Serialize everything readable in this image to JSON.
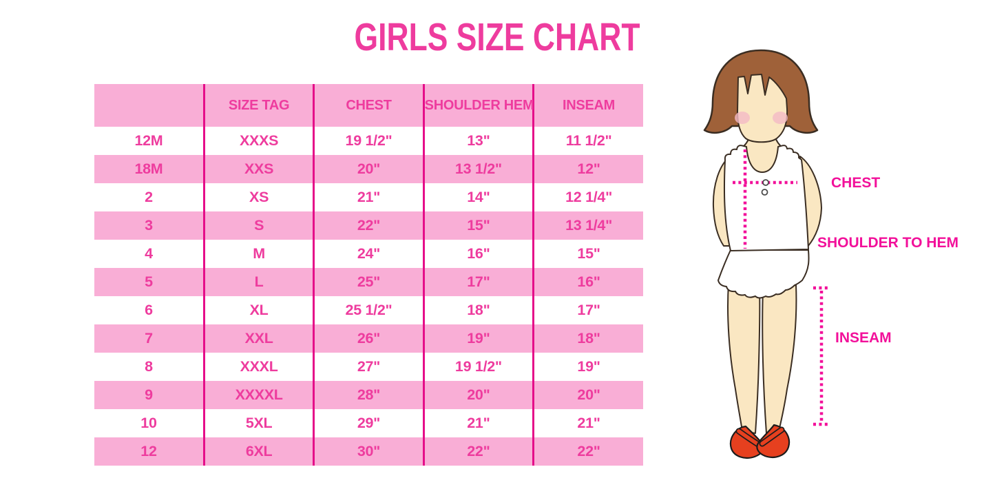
{
  "title": "GIRLS SIZE CHART",
  "colors": {
    "title_pink": "#EE3C9E",
    "stripe_pink": "#F9AED6",
    "grid_pink": "#E50D89",
    "text_pink": "#EE3C9E",
    "label_pink": "#F2109A",
    "hair_brown": "#9F6139",
    "skin": "#FAE7C2",
    "blush": "#F4BAC5",
    "shoe_red": "#E6401F",
    "outline": "#3A2D22"
  },
  "chart_data": {
    "type": "table",
    "title": "GIRLS SIZE CHART",
    "columns": [
      "",
      "SIZE TAG",
      "CHEST",
      "SHOULDER HEM",
      "INSEAM"
    ],
    "rows": [
      [
        "12M",
        "XXXS",
        "19 1/2\"",
        "13\"",
        "11 1/2\""
      ],
      [
        "18M",
        "XXS",
        "20\"",
        "13 1/2\"",
        "12\""
      ],
      [
        "2",
        "XS",
        "21\"",
        "14\"",
        "12 1/4\""
      ],
      [
        "3",
        "S",
        "22\"",
        "15\"",
        "13 1/4\""
      ],
      [
        "4",
        "M",
        "24\"",
        "16\"",
        "15\""
      ],
      [
        "5",
        "L",
        "25\"",
        "17\"",
        "16\""
      ],
      [
        "6",
        "XL",
        "25 1/2\"",
        "18\"",
        "17\""
      ],
      [
        "7",
        "XXL",
        "26\"",
        "19\"",
        "18\""
      ],
      [
        "8",
        "XXXL",
        "27\"",
        "19 1/2\"",
        "19\""
      ],
      [
        "9",
        "XXXXL",
        "28\"",
        "20\"",
        "20\""
      ],
      [
        "10",
        "5XL",
        "29\"",
        "21\"",
        "21\""
      ],
      [
        "12",
        "6XL",
        "30\"",
        "22\"",
        "22\""
      ]
    ]
  },
  "figure": {
    "labels": {
      "chest": "CHEST",
      "shoulder_to_hem": "SHOULDER TO HEM",
      "inseam": "INSEAM"
    }
  }
}
